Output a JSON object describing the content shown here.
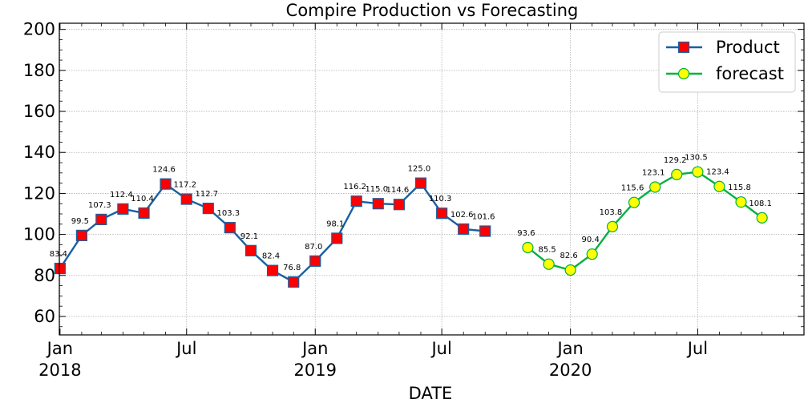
{
  "chart_data": {
    "type": "line",
    "title": "Compire Production vs Forecasting",
    "xlabel": "DATE",
    "ylabel": "",
    "ylim": [
      51,
      203
    ],
    "xlim": [
      "2017-12-31",
      "2020-11-30"
    ],
    "yticks": [
      "60",
      "80",
      "100",
      "120",
      "140",
      "160",
      "180",
      "200"
    ],
    "xticks": [
      {
        "date": "2018-01-01",
        "label": "Jan",
        "year": "2018"
      },
      {
        "date": "2018-07-01",
        "label": "Jul",
        "year": ""
      },
      {
        "date": "2019-01-01",
        "label": "Jan",
        "year": "2019"
      },
      {
        "date": "2019-07-01",
        "label": "Jul",
        "year": ""
      },
      {
        "date": "2020-01-01",
        "label": "Jan",
        "year": "2020"
      },
      {
        "date": "2020-07-01",
        "label": "Jul",
        "year": ""
      }
    ],
    "grid": true,
    "legend_position": "top-right",
    "series": [
      {
        "name": "Product",
        "line_color": "#1a5fa0",
        "marker": "square",
        "marker_fill": "#ff0000",
        "marker_edge": "#1a5fa0",
        "x": [
          "2018-01-01",
          "2018-02-01",
          "2018-03-01",
          "2018-04-01",
          "2018-05-01",
          "2018-06-01",
          "2018-07-01",
          "2018-08-01",
          "2018-09-01",
          "2018-10-01",
          "2018-11-01",
          "2018-12-01",
          "2019-01-01",
          "2019-02-01",
          "2019-03-01",
          "2019-04-01",
          "2019-05-01",
          "2019-06-01",
          "2019-07-01",
          "2019-08-01",
          "2019-09-01"
        ],
        "values": [
          83.4,
          99.5,
          107.3,
          112.4,
          110.4,
          124.6,
          117.2,
          112.7,
          103.3,
          92.1,
          82.4,
          76.8,
          87.0,
          98.1,
          116.2,
          115.0,
          114.6,
          125.0,
          110.3,
          102.6,
          101.6
        ],
        "labels": [
          "83.4",
          "99.5",
          "107.3",
          "112.4",
          "110.4",
          "124.6",
          "117.2",
          "112.7",
          "103.3",
          "92.1",
          "82.4",
          "76.8",
          "87.0",
          "98.1",
          "116.2",
          "115.0",
          "114.6",
          "125.0",
          "110.3",
          "102.6",
          "101.6"
        ]
      },
      {
        "name": "forecast",
        "line_color": "#00b140",
        "marker": "circle",
        "marker_fill": "#ffff00",
        "marker_edge": "#00b140",
        "x": [
          "2019-11-01",
          "2019-12-01",
          "2020-01-01",
          "2020-02-01",
          "2020-03-01",
          "2020-04-01",
          "2020-05-01",
          "2020-06-01",
          "2020-07-01",
          "2020-08-01",
          "2020-09-01",
          "2020-10-01"
        ],
        "values": [
          93.6,
          85.5,
          82.6,
          90.4,
          103.8,
          115.6,
          123.1,
          129.2,
          130.5,
          123.4,
          115.8,
          108.1
        ],
        "labels": [
          "93.6",
          "85.5",
          "82.6",
          "90.4",
          "103.8",
          "115.6",
          "123.1",
          "129.2",
          "130.5",
          "123.4",
          "115.8",
          "108.1"
        ]
      }
    ]
  }
}
